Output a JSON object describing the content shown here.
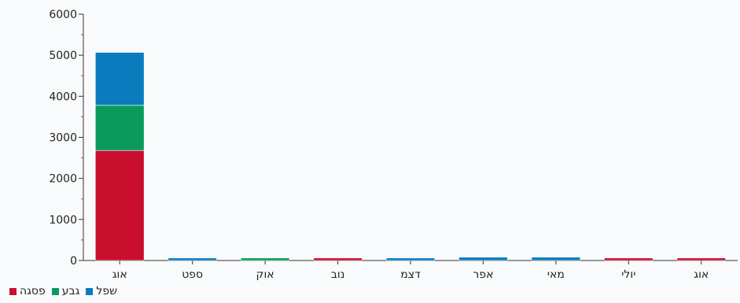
{
  "chart_data": {
    "type": "bar",
    "stacked": true,
    "categories": [
      "אוג",
      "ספט",
      "אוק",
      "נוב",
      "דצמ",
      "אפר",
      "מאי",
      "יולי",
      "אוג"
    ],
    "series": [
      {
        "name": "פסגה",
        "color": "#c8102e",
        "values": [
          2680,
          0,
          0,
          60,
          0,
          0,
          0,
          60,
          60
        ]
      },
      {
        "name": "גבע",
        "color": "#0a9a5c",
        "values": [
          1100,
          0,
          60,
          0,
          0,
          0,
          0,
          0,
          0
        ]
      },
      {
        "name": "שפל",
        "color": "#0a7bbd",
        "values": [
          1290,
          60,
          0,
          0,
          60,
          80,
          80,
          0,
          0
        ]
      }
    ],
    "ylim": [
      0,
      6000
    ],
    "yticks": [
      "0",
      "1000",
      "2000",
      "3000",
      "4000",
      "5000",
      "6000"
    ],
    "legend_position": "bottom-left",
    "grid": false
  }
}
